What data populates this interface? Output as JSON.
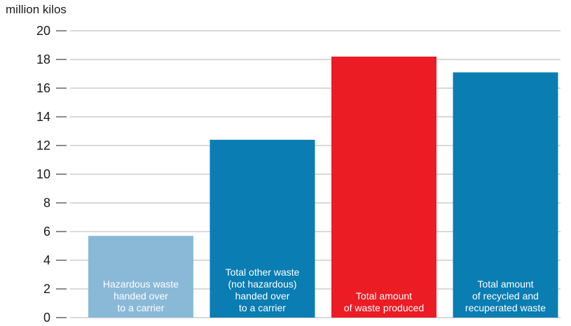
{
  "chart_data": {
    "type": "bar",
    "ylabel": "million kilos",
    "ylim": [
      0,
      20
    ],
    "yticks": [
      0,
      2,
      4,
      6,
      8,
      10,
      12,
      14,
      16,
      18,
      20
    ],
    "grid": true,
    "categories": [
      "Hazardous waste handed over to a carrier",
      "Total other waste (not hazardous) handed over to a carrier",
      "Total amount of waste produced",
      "Total amount of recycled and recuperated waste"
    ],
    "label_lines": [
      [
        "Hazardous waste",
        "handed over",
        "to a carrier"
      ],
      [
        "Total other waste",
        "(not hazardous)",
        "handed over",
        "to a carrier"
      ],
      [
        "Total amount",
        "of waste produced"
      ],
      [
        "Total amount",
        "of recycled and",
        "recuperated waste"
      ]
    ],
    "values": [
      5.7,
      12.4,
      18.2,
      17.1
    ],
    "colors": [
      "#8ab9d8",
      "#0a7db3",
      "#ec1c24",
      "#0a7db3"
    ]
  },
  "colors": {
    "gridline": "#b3b3b3",
    "axis": "#1a1a1a"
  }
}
